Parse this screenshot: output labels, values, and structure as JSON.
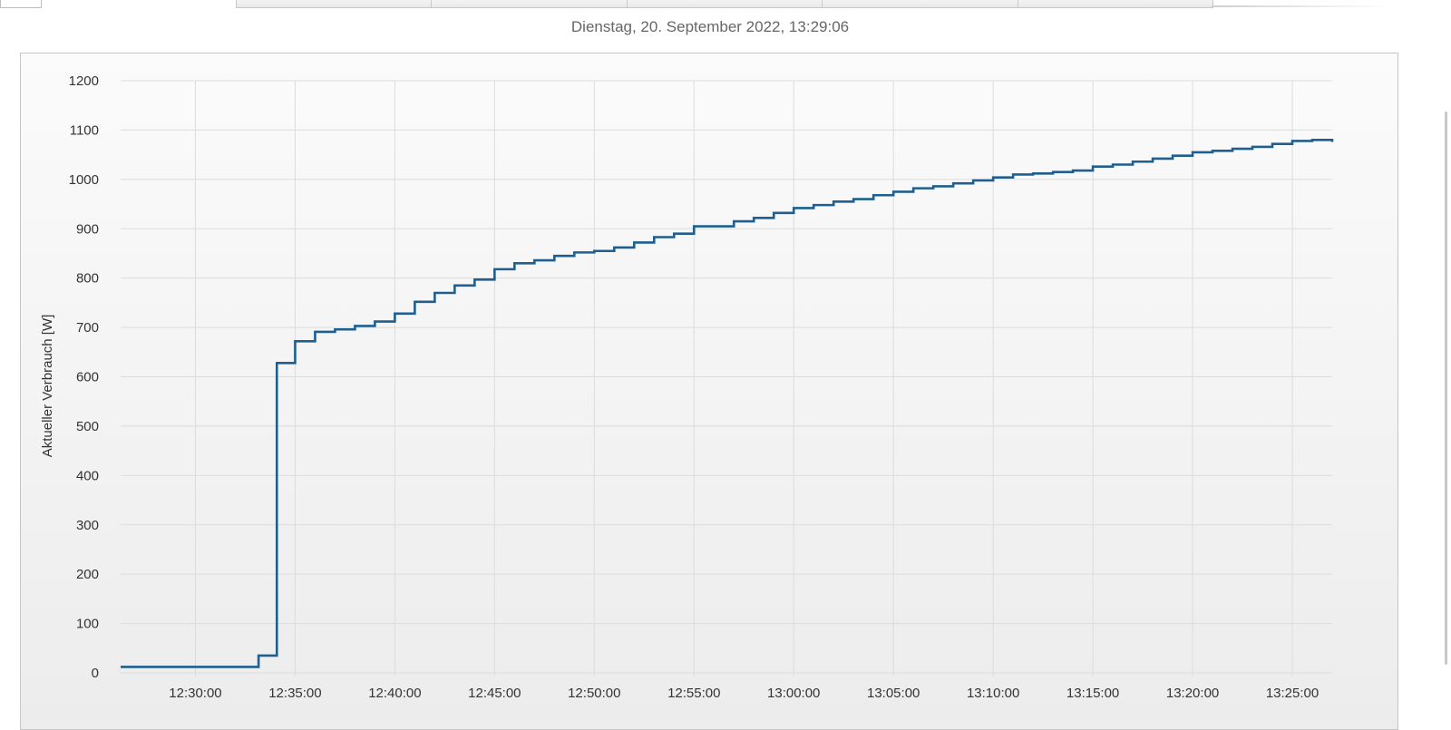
{
  "header": {
    "timestamp": "Dienstag, 20. September 2022, 13:29:06",
    "tab_count": 5
  },
  "colors": {
    "series": "#1f5f8f",
    "grid": "#dcdcdc"
  },
  "chart_data": {
    "type": "line",
    "step": true,
    "title": "",
    "xlabel": "",
    "ylabel": "Aktueller Verbrauch [W]",
    "ylim": [
      0,
      1200
    ],
    "yticks": [
      0,
      100,
      200,
      300,
      400,
      500,
      600,
      700,
      800,
      900,
      1000,
      1100,
      1200
    ],
    "xlim": [
      "12:26:15",
      "13:27:00"
    ],
    "xticks": [
      "12:30:00",
      "12:35:00",
      "12:40:00",
      "12:45:00",
      "12:50:00",
      "12:55:00",
      "13:00:00",
      "13:05:00",
      "13:10:00",
      "13:15:00",
      "13:20:00",
      "13:25:00"
    ],
    "grid": true,
    "legend": "none",
    "series": [
      {
        "x": [
          "12:26:15",
          "12:33:10",
          "12:34:05",
          "12:35:00",
          "12:36:00",
          "12:37:00",
          "12:38:00",
          "12:39:00",
          "12:40:00",
          "12:41:00",
          "12:42:00",
          "12:43:00",
          "12:44:00",
          "12:45:00",
          "12:46:00",
          "12:47:00",
          "12:48:00",
          "12:49:00",
          "12:50:00",
          "12:51:00",
          "12:52:00",
          "12:53:00",
          "12:54:00",
          "12:55:00",
          "12:57:00",
          "12:58:00",
          "12:59:00",
          "13:00:00",
          "13:01:00",
          "13:02:00",
          "13:03:00",
          "13:04:00",
          "13:05:00",
          "13:06:00",
          "13:07:00",
          "13:08:00",
          "13:09:00",
          "13:10:00",
          "13:11:00",
          "13:12:00",
          "13:13:00",
          "13:14:00",
          "13:15:00",
          "13:16:00",
          "13:17:00",
          "13:18:00",
          "13:19:00",
          "13:20:00",
          "13:21:00",
          "13:22:00",
          "13:23:00",
          "13:24:00",
          "13:25:00",
          "13:26:00",
          "13:27:00"
        ],
        "y": [
          12,
          35,
          628,
          672,
          691,
          696,
          703,
          712,
          728,
          752,
          770,
          785,
          797,
          818,
          830,
          836,
          845,
          852,
          855,
          862,
          872,
          883,
          890,
          905,
          915,
          922,
          932,
          942,
          948,
          955,
          960,
          968,
          975,
          982,
          986,
          992,
          998,
          1004,
          1010,
          1012,
          1015,
          1018,
          1026,
          1030,
          1036,
          1042,
          1048,
          1055,
          1058,
          1062,
          1066,
          1072,
          1078,
          1080,
          1076
        ]
      }
    ]
  }
}
